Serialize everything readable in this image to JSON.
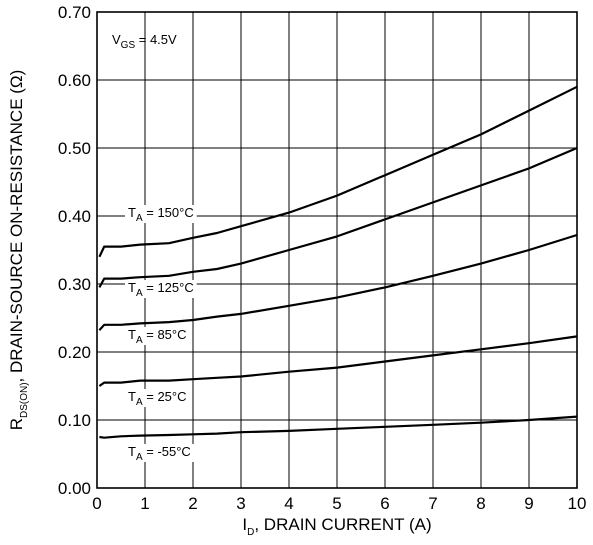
{
  "chart_data": {
    "type": "line",
    "title": "",
    "xlabel": {
      "main": "I",
      "sub": "D",
      "rest": ", DRAIN CURRENT (A)"
    },
    "ylabel": {
      "main": "R",
      "sub": "DS(ON)",
      "rest": ", DRAIN-SOURCE ON-RESISTANCE (Ω)"
    },
    "xlim": [
      0,
      10
    ],
    "ylim": [
      0,
      0.7
    ],
    "xticks": [
      0,
      1,
      2,
      3,
      4,
      5,
      6,
      7,
      8,
      9,
      10
    ],
    "xtick_labels": [
      "0",
      "1",
      "2",
      "3",
      "4",
      "5",
      "6",
      "7",
      "8",
      "9",
      "10"
    ],
    "yticks": [
      0,
      0.1,
      0.2,
      0.3,
      0.4,
      0.5,
      0.6,
      0.7
    ],
    "ytick_labels": [
      "0.00",
      "0.10",
      "0.20",
      "0.30",
      "0.40",
      "0.50",
      "0.60",
      "0.70"
    ],
    "grid": true,
    "condition": {
      "main": "V",
      "sub": "GS",
      "rest": " = 4.5V"
    },
    "series": [
      {
        "name": "150°C",
        "label": {
          "main": "T",
          "sub": "A",
          "rest": " = 150°C"
        },
        "x": [
          0.05,
          0.15,
          0.5,
          0.9,
          1.5,
          2,
          2.5,
          3,
          4,
          5,
          6,
          7,
          8,
          9,
          10
        ],
        "y": [
          0.34,
          0.355,
          0.355,
          0.358,
          0.36,
          0.368,
          0.375,
          0.385,
          0.405,
          0.43,
          0.46,
          0.49,
          0.52,
          0.555,
          0.59
        ]
      },
      {
        "name": "125°C",
        "label": {
          "main": "T",
          "sub": "A",
          "rest": " = 125°C"
        },
        "x": [
          0.05,
          0.15,
          0.5,
          0.9,
          1.5,
          2,
          2.5,
          3,
          4,
          5,
          6,
          7,
          8,
          9,
          10
        ],
        "y": [
          0.295,
          0.308,
          0.308,
          0.31,
          0.312,
          0.318,
          0.322,
          0.33,
          0.35,
          0.37,
          0.395,
          0.42,
          0.445,
          0.47,
          0.5
        ]
      },
      {
        "name": "85°C",
        "label": {
          "main": "T",
          "sub": "A",
          "rest": " = 85°C"
        },
        "x": [
          0.05,
          0.15,
          0.5,
          0.9,
          1.5,
          2,
          2.5,
          3,
          4,
          5,
          6,
          7,
          8,
          9,
          10
        ],
        "y": [
          0.232,
          0.24,
          0.24,
          0.242,
          0.244,
          0.247,
          0.252,
          0.256,
          0.268,
          0.28,
          0.295,
          0.312,
          0.33,
          0.35,
          0.372
        ]
      },
      {
        "name": "25°C",
        "label": {
          "main": "T",
          "sub": "A",
          "rest": " = 25°C"
        },
        "x": [
          0.05,
          0.15,
          0.5,
          0.9,
          1.5,
          2,
          2.5,
          3,
          4,
          5,
          6,
          7,
          8,
          9,
          10
        ],
        "y": [
          0.15,
          0.155,
          0.155,
          0.158,
          0.158,
          0.16,
          0.162,
          0.164,
          0.171,
          0.177,
          0.186,
          0.195,
          0.204,
          0.213,
          0.223
        ]
      },
      {
        "name": "-55°C",
        "label": {
          "main": "T",
          "sub": "A",
          "rest": " = -55°C"
        },
        "x": [
          0.05,
          0.15,
          0.5,
          0.9,
          1.5,
          2,
          2.5,
          3,
          4,
          5,
          6,
          7,
          8,
          9,
          10
        ],
        "y": [
          0.075,
          0.074,
          0.076,
          0.077,
          0.078,
          0.079,
          0.08,
          0.082,
          0.084,
          0.087,
          0.09,
          0.093,
          0.096,
          0.1,
          0.105
        ]
      }
    ]
  }
}
